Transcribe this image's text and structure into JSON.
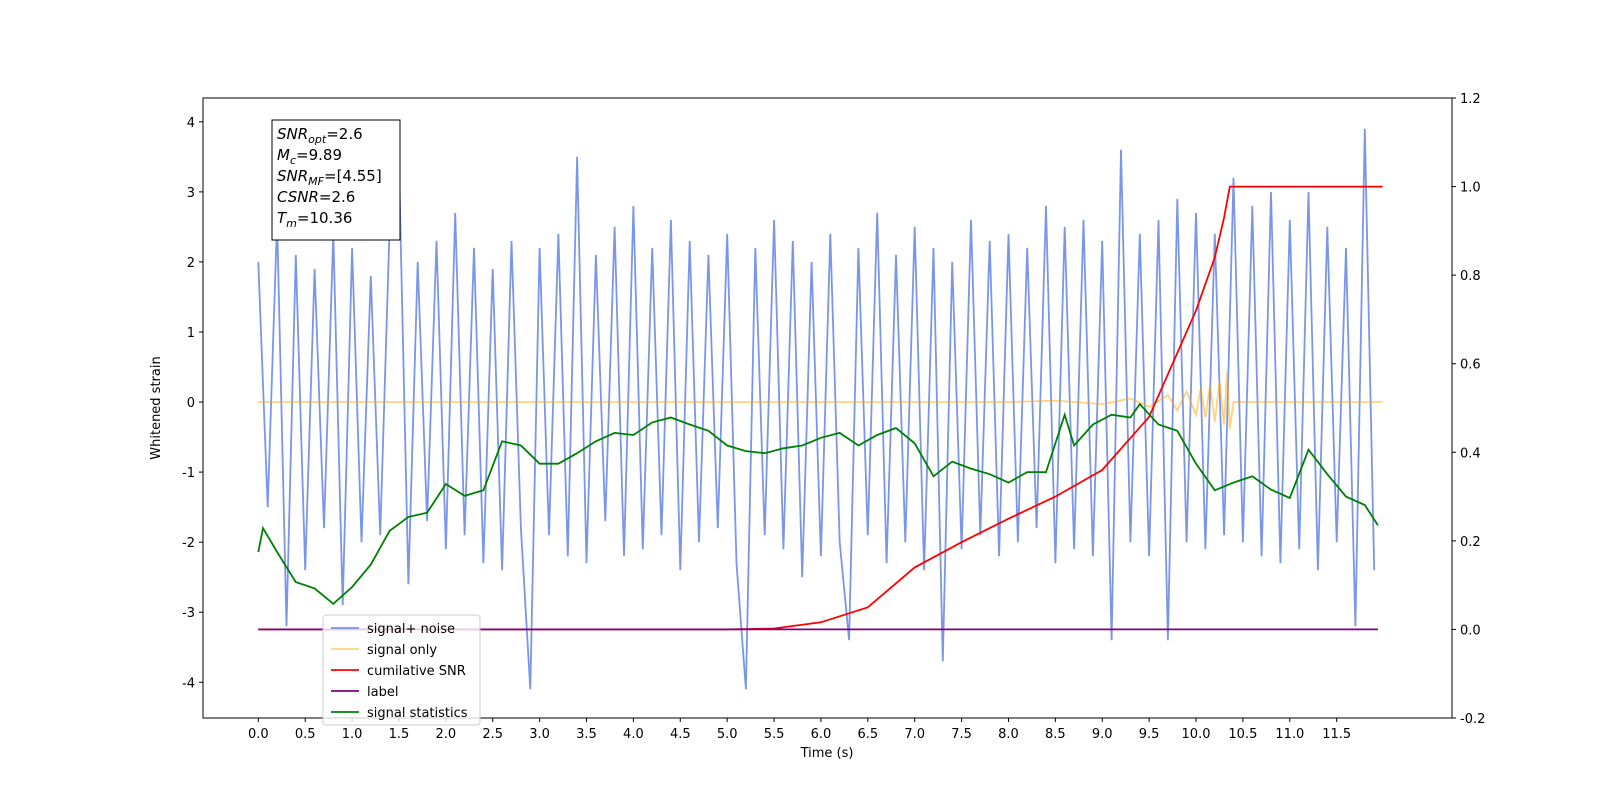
{
  "chart_data": {
    "type": "line",
    "xlabel": "Time (s)",
    "ylabel": "Whitened strain",
    "xlim": [
      -0.59,
      12.73
    ],
    "ylim": [
      -4.51,
      4.34
    ],
    "y2lim": [
      -0.2,
      1.2
    ],
    "xticks": [
      {
        "value": 0,
        "label": "0.0"
      },
      0.5,
      {
        "value": 1,
        "label": "1.0"
      },
      1.5,
      {
        "value": 2,
        "label": "2.0"
      },
      2.5,
      {
        "value": 3,
        "label": "3.0"
      },
      3.5,
      {
        "value": 4,
        "label": "4.0"
      },
      4.5,
      {
        "value": 5,
        "label": "5.0"
      },
      5.5,
      {
        "value": 6,
        "label": "6.0"
      },
      6.5,
      {
        "value": 7,
        "label": "7.0"
      },
      7.5,
      {
        "value": 8,
        "label": "8.0"
      },
      8.5,
      {
        "value": 9,
        "label": "9.0"
      },
      9.5,
      {
        "value": 10,
        "label": "10.0"
      },
      10.5,
      {
        "value": 11,
        "label": "11.0"
      },
      11.5
    ],
    "yticks": [
      -4,
      -3,
      -2,
      -1,
      0,
      1,
      2,
      3,
      4
    ],
    "y2ticks": [
      -0.2,
      {
        "value": 0,
        "label": "0.0"
      },
      0.2,
      0.4,
      0.6,
      0.8,
      {
        "value": 1,
        "label": "1.0"
      },
      1.2
    ],
    "legend": "lower left",
    "annotation": [
      {
        "main": "SNR",
        "sub": "opt",
        "rest": "=2.6"
      },
      {
        "main": "M",
        "sub": "c",
        "rest": "=9.89"
      },
      {
        "main": "SNR",
        "sub": "MF",
        "rest": "=[4.55]"
      },
      {
        "main": "CSNR",
        "sub": "",
        "rest": "=2.6"
      },
      {
        "main": "T",
        "sub": "m",
        "rest": "=10.36"
      }
    ],
    "series": [
      {
        "name": "signal+ noise",
        "color": "royalblue",
        "alpha": 0.7,
        "x": [
          0,
          0.1,
          0.2,
          0.3,
          0.4,
          0.5,
          0.6,
          0.7,
          0.8,
          0.9,
          1,
          1.1,
          1.2,
          1.3,
          1.4,
          1.5,
          1.6,
          1.7,
          1.8,
          1.9,
          2,
          2.1,
          2.2,
          2.3,
          2.4,
          2.5,
          2.6,
          2.7,
          2.8,
          2.9,
          3,
          3.1,
          3.2,
          3.3,
          3.4,
          3.5,
          3.6,
          3.7,
          3.8,
          3.9,
          4,
          4.1,
          4.2,
          4.3,
          4.4,
          4.5,
          4.6,
          4.7,
          4.8,
          4.9,
          5,
          5.1,
          5.2,
          5.3,
          5.4,
          5.5,
          5.6,
          5.7,
          5.8,
          5.9,
          6,
          6.1,
          6.2,
          6.3,
          6.4,
          6.5,
          6.6,
          6.7,
          6.8,
          6.9,
          7,
          7.1,
          7.2,
          7.3,
          7.4,
          7.5,
          7.6,
          7.7,
          7.8,
          7.9,
          8,
          8.1,
          8.2,
          8.3,
          8.4,
          8.5,
          8.6,
          8.7,
          8.8,
          8.9,
          9,
          9.1,
          9.2,
          9.3,
          9.4,
          9.5,
          9.6,
          9.7,
          9.8,
          9.9,
          10,
          10.1,
          10.2,
          10.3,
          10.4,
          10.5,
          10.6,
          10.7,
          10.8,
          10.9,
          11,
          11.1,
          11.2,
          11.3,
          11.4,
          11.5,
          11.6,
          11.7,
          11.8,
          11.9
        ],
        "values": [
          2.0,
          -1.5,
          2.6,
          -3.2,
          2.1,
          -2.4,
          1.9,
          -1.8,
          2.4,
          -2.9,
          2.2,
          -2.0,
          1.8,
          -1.9,
          2.5,
          3.4,
          -2.6,
          2.0,
          -1.7,
          2.3,
          -2.1,
          2.7,
          -1.9,
          2.2,
          -2.3,
          1.9,
          -2.4,
          2.3,
          -1.8,
          -4.1,
          2.2,
          -1.9,
          2.4,
          -2.2,
          3.5,
          -2.3,
          2.1,
          -1.7,
          2.5,
          -2.2,
          2.8,
          -2.1,
          2.2,
          -1.9,
          2.6,
          -2.4,
          2.3,
          -2.0,
          2.1,
          -1.8,
          2.4,
          -2.3,
          -4.1,
          2.2,
          -1.9,
          2.6,
          -2.1,
          2.3,
          -2.5,
          2.0,
          -2.2,
          2.4,
          -2.0,
          -3.4,
          2.2,
          -1.9,
          2.7,
          -2.3,
          2.1,
          -2.0,
          2.5,
          -2.4,
          2.2,
          -3.7,
          2.0,
          -2.1,
          2.6,
          -1.9,
          2.3,
          -2.2,
          2.4,
          -2.0,
          2.2,
          -1.8,
          2.8,
          -2.3,
          2.5,
          -2.1,
          2.6,
          -2.2,
          2.3,
          -3.4,
          3.6,
          -2.0,
          2.4,
          -2.2,
          2.6,
          -3.4,
          2.9,
          -2.0,
          2.7,
          -2.1,
          2.4,
          -1.9,
          3.2,
          -2.0,
          2.8,
          -2.2,
          3.0,
          -2.3,
          2.6,
          -2.1,
          3.0,
          -2.4,
          2.5,
          -2.0,
          2.2,
          -3.2,
          3.9,
          -2.4
        ]
      },
      {
        "name": "signal only",
        "color": "orange",
        "alpha": 0.5,
        "x": [
          0,
          8.0,
          8.5,
          9.0,
          9.3,
          9.5,
          9.7,
          9.8,
          9.9,
          10.0,
          10.05,
          10.1,
          10.15,
          10.2,
          10.25,
          10.3,
          10.33,
          10.36,
          10.4,
          11.99
        ],
        "values": [
          0,
          0,
          0.02,
          -0.03,
          0.05,
          -0.07,
          0.1,
          -0.12,
          0.15,
          -0.18,
          0.2,
          -0.22,
          0.25,
          -0.28,
          0.3,
          -0.32,
          0.42,
          -0.38,
          0,
          0
        ]
      },
      {
        "name": "cumilative SNR",
        "color": "red",
        "alpha": 1,
        "axis": "y2",
        "x": [
          0,
          5.0,
          5.5,
          6.0,
          6.5,
          7.0,
          7.5,
          8.0,
          8.5,
          9.0,
          9.5,
          10.0,
          10.2,
          10.3,
          10.36,
          11.99
        ],
        "values": [
          0,
          0,
          0.002,
          0.016,
          0.05,
          0.14,
          0.197,
          0.25,
          0.3,
          0.36,
          0.48,
          0.72,
          0.84,
          0.93,
          1.0,
          1.0
        ]
      },
      {
        "name": "label",
        "color": "purple",
        "alpha": 1,
        "axis": "y2",
        "x": [
          0,
          11.94
        ],
        "values": [
          0,
          0
        ]
      },
      {
        "name": "signal statistics",
        "color": "green",
        "alpha": 1,
        "x": [
          0,
          0.05,
          0.2,
          0.4,
          0.6,
          0.8,
          1.0,
          1.2,
          1.4,
          1.6,
          1.8,
          2.0,
          2.2,
          2.4,
          2.6,
          2.8,
          3.0,
          3.2,
          3.4,
          3.6,
          3.8,
          4.0,
          4.2,
          4.4,
          4.6,
          4.8,
          5.0,
          5.2,
          5.4,
          5.6,
          5.8,
          6.0,
          6.2,
          6.4,
          6.6,
          6.8,
          7.0,
          7.2,
          7.4,
          7.6,
          7.8,
          8.0,
          8.2,
          8.4,
          8.6,
          8.7,
          8.9,
          9.1,
          9.3,
          9.4,
          9.6,
          9.8,
          10.0,
          10.2,
          10.4,
          10.6,
          10.8,
          11.0,
          11.2,
          11.4,
          11.6,
          11.8,
          11.94
        ],
        "values": [
          -2.14,
          -1.8,
          -2.14,
          -2.57,
          -2.66,
          -2.88,
          -2.64,
          -2.32,
          -1.84,
          -1.64,
          -1.58,
          -1.17,
          -1.34,
          -1.26,
          -0.56,
          -0.62,
          -0.88,
          -0.88,
          -0.73,
          -0.56,
          -0.44,
          -0.47,
          -0.29,
          -0.22,
          -0.32,
          -0.41,
          -0.62,
          -0.7,
          -0.73,
          -0.66,
          -0.62,
          -0.51,
          -0.44,
          -0.62,
          -0.47,
          -0.37,
          -0.59,
          -1.06,
          -0.85,
          -0.95,
          -1.03,
          -1.15,
          -1.0,
          -1.0,
          -0.18,
          -0.62,
          -0.32,
          -0.18,
          -0.22,
          -0.03,
          -0.32,
          -0.41,
          -0.88,
          -1.26,
          -1.15,
          -1.06,
          -1.25,
          -1.37,
          -0.68,
          -1.03,
          -1.35,
          -1.47,
          -1.76
        ]
      }
    ]
  }
}
